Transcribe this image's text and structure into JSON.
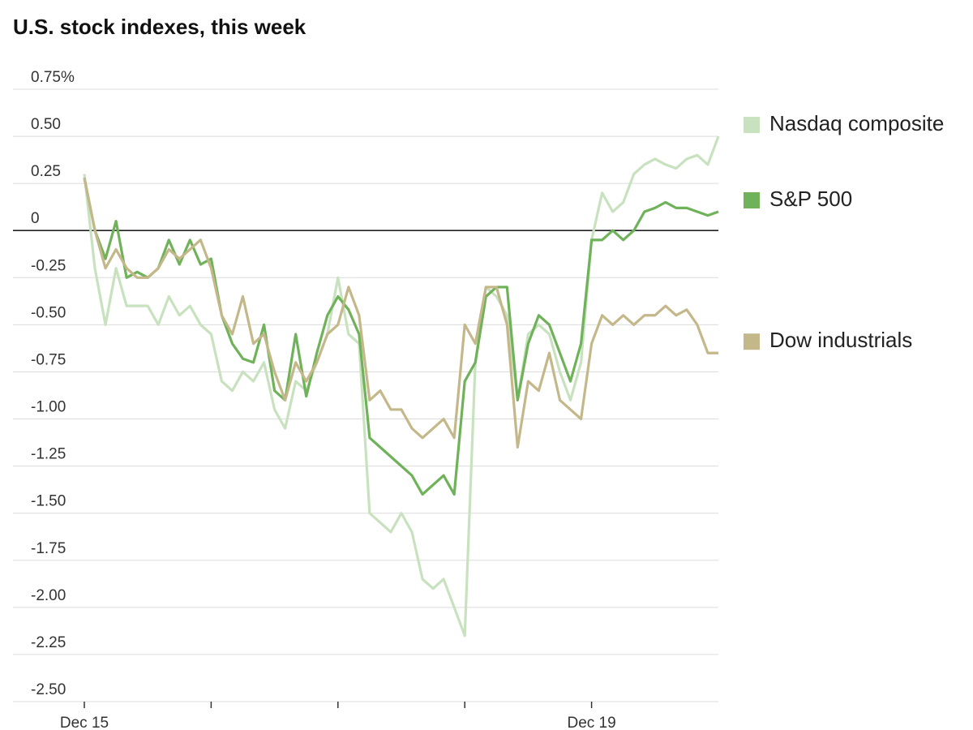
{
  "chart_data": {
    "type": "line",
    "title": "U.S. stock indexes, this week",
    "categories": [
      "Dec 15",
      null,
      null,
      null,
      null,
      null,
      null,
      null,
      null,
      null,
      null,
      null,
      null,
      null,
      null,
      null,
      null,
      null,
      null,
      null,
      null,
      null,
      null,
      null,
      null,
      null,
      null,
      null,
      null,
      null,
      null,
      null,
      null,
      null,
      null,
      null,
      null,
      null,
      null,
      null,
      null,
      null,
      null,
      null,
      null,
      null,
      null,
      null,
      "Dec 19",
      null,
      null,
      null,
      null,
      null,
      null,
      null,
      null,
      null,
      null,
      null,
      null
    ],
    "xticks": [
      0,
      12,
      24,
      36,
      48
    ],
    "ylim": [
      -2.5,
      0.75
    ],
    "yticks": [
      {
        "value": 0.75,
        "label": "0.75%"
      },
      {
        "value": 0.5,
        "label": "0.50"
      },
      0.25,
      0,
      -0.25,
      {
        "value": -0.5,
        "label": "-0.50"
      },
      -0.75,
      {
        "value": -1,
        "label": "-1.00"
      },
      -1.25,
      {
        "value": -1.5,
        "label": "-1.50"
      },
      -1.75,
      {
        "value": -2,
        "label": "-2.00"
      },
      -2.25,
      {
        "value": -2.5,
        "label": "-2.50"
      }
    ],
    "grid": true,
    "series": [
      {
        "name": "Nasdaq composite",
        "color": "#c8e2bf",
        "values": [
          0.3,
          -0.2,
          -0.5,
          -0.2,
          -0.4,
          -0.4,
          -0.4,
          -0.5,
          -0.35,
          -0.45,
          -0.4,
          -0.5,
          -0.55,
          -0.8,
          -0.85,
          -0.75,
          -0.8,
          -0.7,
          -0.95,
          -1.05,
          -0.8,
          -0.85,
          -0.7,
          -0.55,
          -0.25,
          -0.55,
          -0.6,
          -1.5,
          -1.55,
          -1.6,
          -1.5,
          -1.6,
          -1.85,
          -1.9,
          -1.85,
          -2.0,
          -2.15,
          -0.7,
          -0.3,
          -0.35,
          -0.45,
          -0.9,
          -0.55,
          -0.5,
          -0.55,
          -0.75,
          -0.9,
          -0.7,
          -0.05,
          0.2,
          0.1,
          0.15,
          0.3,
          0.35,
          0.38,
          0.35,
          0.33,
          0.38,
          0.4,
          0.35,
          0.5
        ]
      },
      {
        "name": "S&P 500",
        "color": "#6fb25a",
        "values": [
          0.28,
          0.0,
          -0.15,
          0.05,
          -0.25,
          -0.22,
          -0.25,
          -0.2,
          -0.05,
          -0.18,
          -0.05,
          -0.18,
          -0.15,
          -0.45,
          -0.6,
          -0.68,
          -0.7,
          -0.5,
          -0.85,
          -0.9,
          -0.55,
          -0.88,
          -0.65,
          -0.45,
          -0.35,
          -0.42,
          -0.55,
          -1.1,
          -1.15,
          -1.2,
          -1.25,
          -1.3,
          -1.4,
          -1.35,
          -1.3,
          -1.4,
          -0.8,
          -0.7,
          -0.35,
          -0.3,
          -0.3,
          -0.9,
          -0.6,
          -0.45,
          -0.5,
          -0.65,
          -0.8,
          -0.6,
          -0.05,
          -0.05,
          0.0,
          -0.05,
          0.0,
          0.1,
          0.12,
          0.15,
          0.12,
          0.12,
          0.1,
          0.08,
          0.1
        ]
      },
      {
        "name": "Dow industrials",
        "color": "#c4b88b",
        "values": [
          0.28,
          0.0,
          -0.2,
          -0.1,
          -0.2,
          -0.25,
          -0.25,
          -0.2,
          -0.1,
          -0.15,
          -0.1,
          -0.05,
          -0.2,
          -0.45,
          -0.55,
          -0.35,
          -0.6,
          -0.55,
          -0.75,
          -0.9,
          -0.7,
          -0.8,
          -0.7,
          -0.55,
          -0.5,
          -0.3,
          -0.45,
          -0.9,
          -0.85,
          -0.95,
          -0.95,
          -1.05,
          -1.1,
          -1.05,
          -1.0,
          -1.1,
          -0.5,
          -0.6,
          -0.3,
          -0.3,
          -0.5,
          -1.15,
          -0.8,
          -0.85,
          -0.65,
          -0.9,
          -0.95,
          -1.0,
          -0.6,
          -0.45,
          -0.5,
          -0.45,
          -0.5,
          -0.45,
          -0.45,
          -0.4,
          -0.45,
          -0.42,
          -0.5,
          -0.65,
          -0.65
        ]
      }
    ]
  }
}
